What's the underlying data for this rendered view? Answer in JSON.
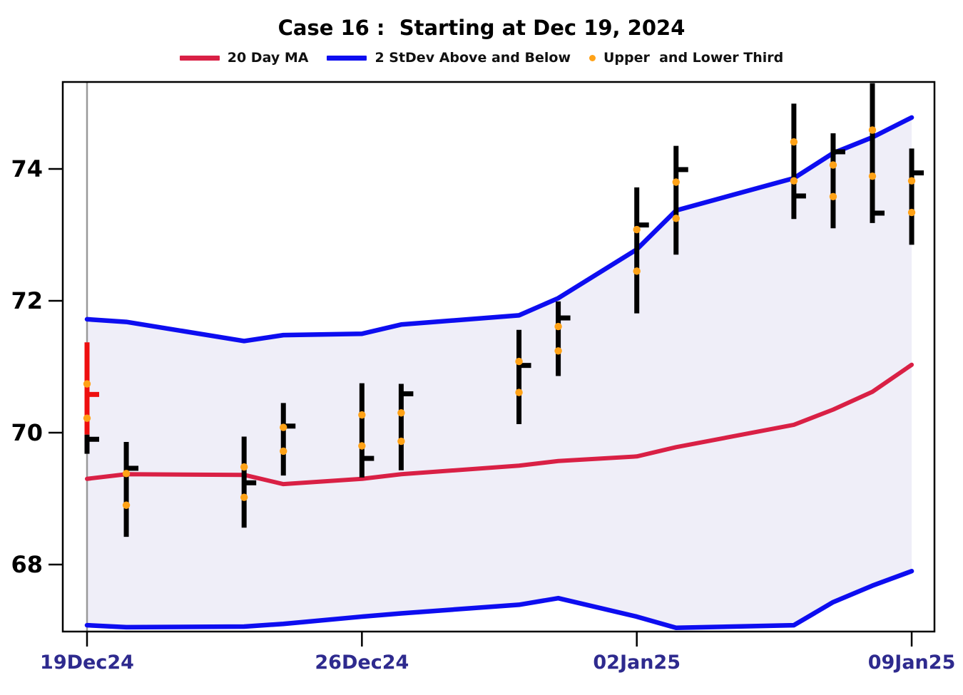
{
  "title": "Case 16 :  Starting at Dec 19, 2024",
  "legend": [
    {
      "label": "20 Day MA",
      "type": "line",
      "color": "#d92045"
    },
    {
      "label": "2 StDev Above and Below",
      "type": "line",
      "color": "#0d0df0"
    },
    {
      "label": "Upper  and Lower Third",
      "type": "dot",
      "color": "#ffa217"
    }
  ],
  "colors": {
    "ma_line": "#d92045",
    "band_line": "#0d0df0",
    "band_fill": "#efeef8",
    "bar": "#000000",
    "highlight_bar": "#ee0f0f",
    "third_dot": "#ffa217",
    "x_label": "#2e2a8e",
    "y_label": "#000000",
    "frame": "#000000",
    "start_line": "#999999"
  },
  "chart_data": {
    "type": "hlc-bar",
    "title": "Case 16 :  Starting at Dec 19, 2024",
    "xlabel": "",
    "ylabel": "",
    "grid": false,
    "legend_position": "top",
    "ylim": [
      66.98,
      75.32
    ],
    "y_ticks": [
      68,
      70,
      72,
      74
    ],
    "x_ticks": [
      {
        "label": "19Dec24",
        "offset": 0
      },
      {
        "label": "26Dec24",
        "offset": 7
      },
      {
        "label": "02Jan25",
        "offset": 14
      },
      {
        "label": "09Jan25",
        "offset": 21
      }
    ],
    "dates": [
      "19Dec24",
      "20Dec24",
      "23Dec24",
      "24Dec24",
      "26Dec24",
      "27Dec24",
      "30Dec24",
      "31Dec24",
      "02Jan25",
      "03Jan25",
      "06Jan25",
      "07Jan25",
      "08Jan25",
      "09Jan25"
    ],
    "day_offsets": [
      0,
      1,
      4,
      5,
      7,
      8,
      11,
      12,
      14,
      15,
      18,
      19,
      20,
      21
    ],
    "bars": [
      {
        "date": "19Dec24",
        "high": 71.37,
        "low": 69.97,
        "close": 70.58,
        "third_upper": 70.74,
        "third_lower": 70.22,
        "color": "highlight"
      },
      {
        "date": "20Dec24",
        "high": 69.86,
        "low": 68.42,
        "close": 69.46,
        "third_upper": 69.38,
        "third_lower": 68.9,
        "color": "normal"
      },
      {
        "date": "23Dec24",
        "high": 69.94,
        "low": 68.56,
        "close": 69.24,
        "third_upper": 69.48,
        "third_lower": 69.02,
        "color": "normal"
      },
      {
        "date": "24Dec24",
        "high": 70.45,
        "low": 69.35,
        "close": 70.1,
        "third_upper": 70.08,
        "third_lower": 69.72,
        "color": "normal"
      },
      {
        "date": "26Dec24",
        "high": 70.75,
        "low": 69.32,
        "close": 69.61,
        "third_upper": 70.27,
        "third_lower": 69.8,
        "color": "normal"
      },
      {
        "date": "27Dec24",
        "high": 70.74,
        "low": 69.43,
        "close": 70.59,
        "third_upper": 70.3,
        "third_lower": 69.87,
        "color": "normal"
      },
      {
        "date": "30Dec24",
        "high": 71.56,
        "low": 70.13,
        "close": 71.02,
        "third_upper": 71.08,
        "third_lower": 70.61,
        "color": "normal"
      },
      {
        "date": "31Dec24",
        "high": 71.99,
        "low": 70.86,
        "close": 71.74,
        "third_upper": 71.61,
        "third_lower": 71.24,
        "color": "normal"
      },
      {
        "date": "02Jan25",
        "high": 73.72,
        "low": 71.81,
        "close": 73.15,
        "third_upper": 73.08,
        "third_lower": 72.45,
        "color": "normal"
      },
      {
        "date": "03Jan25",
        "high": 74.35,
        "low": 72.7,
        "close": 73.99,
        "third_upper": 73.8,
        "third_lower": 73.25,
        "color": "normal"
      },
      {
        "date": "06Jan25",
        "high": 74.99,
        "low": 73.24,
        "close": 73.59,
        "third_upper": 74.41,
        "third_lower": 73.82,
        "color": "normal"
      },
      {
        "date": "07Jan25",
        "high": 74.54,
        "low": 73.1,
        "close": 74.26,
        "third_upper": 74.06,
        "third_lower": 73.58,
        "color": "normal"
      },
      {
        "date": "08Jan25",
        "high": 75.3,
        "low": 73.18,
        "close": 73.33,
        "third_upper": 74.59,
        "third_lower": 73.89,
        "color": "normal"
      },
      {
        "date": "09Jan25",
        "high": 74.31,
        "low": 72.85,
        "close": 73.94,
        "third_upper": 73.82,
        "third_lower": 73.34,
        "color": "normal"
      }
    ],
    "start_bar_tail": {
      "date": "19Dec24",
      "high": 69.97,
      "low": 69.68,
      "close": 69.9,
      "color": "normal"
    },
    "series": [
      {
        "name": "20 Day MA",
        "values": [
          69.3,
          69.37,
          69.36,
          69.22,
          69.3,
          69.37,
          69.5,
          69.57,
          69.64,
          69.78,
          70.12,
          70.35,
          70.62,
          71.03
        ]
      },
      {
        "name": "Upper 2 StDev",
        "values": [
          71.72,
          71.68,
          71.39,
          71.48,
          71.5,
          71.64,
          71.78,
          72.04,
          72.78,
          73.37,
          73.86,
          74.24,
          74.48,
          74.78
        ]
      },
      {
        "name": "Lower 2 StDev",
        "values": [
          67.08,
          67.05,
          67.06,
          67.1,
          67.21,
          67.26,
          67.39,
          67.49,
          67.21,
          67.04,
          67.08,
          67.43,
          67.68,
          67.9
        ]
      }
    ]
  }
}
